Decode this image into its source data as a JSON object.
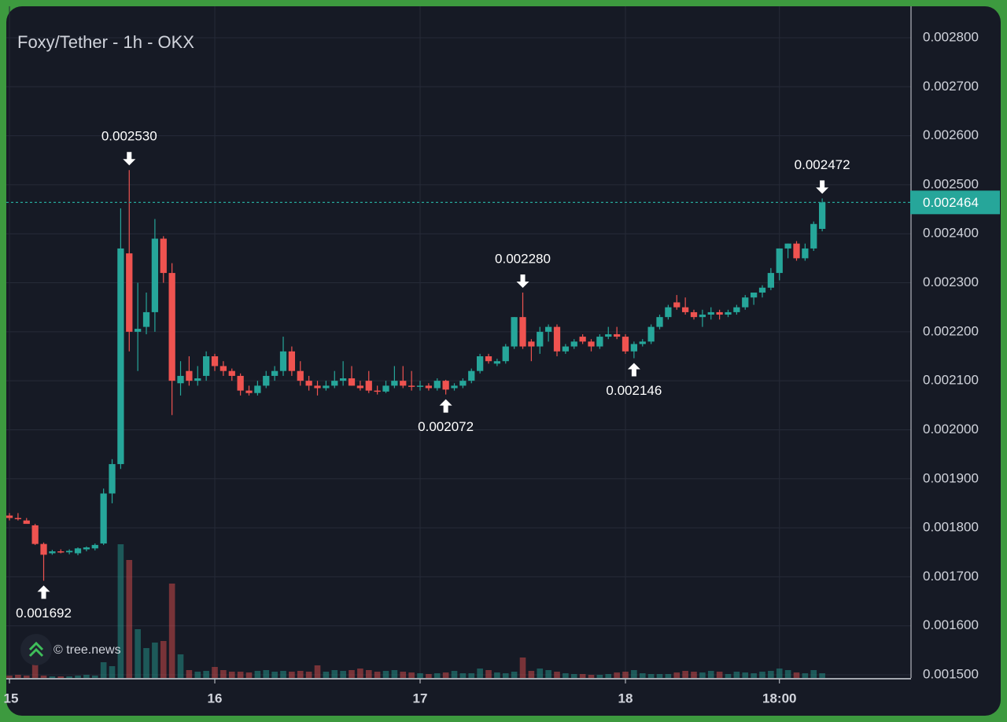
{
  "chart_data": {
    "type": "candlestick",
    "title": "Foxy/Tether - 1h - OKX",
    "watermark": "© tree.news",
    "up_color": "#26a69a",
    "down_color": "#ef5350",
    "grid": true,
    "ylim": [
      0.0015,
      0.0028
    ],
    "yticks": [
      {
        "value": 0.0015,
        "label": "0.001500"
      },
      {
        "value": 0.0016,
        "label": "0.001600"
      },
      {
        "value": 0.0017,
        "label": "0.001700"
      },
      {
        "value": 0.0018,
        "label": "0.001800"
      },
      {
        "value": 0.0019,
        "label": "0.001900"
      },
      {
        "value": 0.002,
        "label": "0.002000"
      },
      {
        "value": 0.0021,
        "label": "0.002100"
      },
      {
        "value": 0.0022,
        "label": "0.002200"
      },
      {
        "value": 0.0023,
        "label": "0.002300"
      },
      {
        "value": 0.0024,
        "label": "0.002400"
      },
      {
        "value": 0.0025,
        "label": "0.002500"
      },
      {
        "value": 0.0026,
        "label": "0.002600"
      },
      {
        "value": 0.0027,
        "label": "0.002700"
      },
      {
        "value": 0.0028,
        "label": "0.002800"
      }
    ],
    "xlim": [
      -0.37,
      105.38
    ],
    "xticks": [
      {
        "value": 0,
        "label": "15"
      },
      {
        "value": 24,
        "label": "16"
      },
      {
        "value": 48,
        "label": "17"
      },
      {
        "value": 72,
        "label": "18"
      },
      {
        "value": 90,
        "label": "18:00"
      }
    ],
    "last_price": {
      "value": 0.002464,
      "label": "0.002464"
    },
    "annotations": [
      {
        "x": 14,
        "value": 0.00253,
        "label": "0.002530",
        "side": "above"
      },
      {
        "x": 4,
        "value": 0.001692,
        "label": "0.001692",
        "side": "below"
      },
      {
        "x": 60,
        "value": 0.00228,
        "label": "0.002280",
        "side": "above"
      },
      {
        "x": 51,
        "value": 0.002072,
        "label": "0.002072",
        "side": "below"
      },
      {
        "x": 73,
        "value": 0.002146,
        "label": "0.002146",
        "side": "below"
      },
      {
        "x": 95,
        "value": 0.002472,
        "label": "0.002472",
        "side": "above"
      }
    ],
    "candles": [
      [
        0.001825,
        0.00183,
        0.001815,
        0.00182
      ],
      [
        0.00182,
        0.00183,
        0.001815,
        0.001818
      ],
      [
        0.001815,
        0.00182,
        0.00181,
        0.001808
      ],
      [
        0.001805,
        0.001808,
        0.001765,
        0.001767
      ],
      [
        0.001767,
        0.00177,
        0.001692,
        0.001745
      ],
      [
        0.001748,
        0.001755,
        0.001745,
        0.001752
      ],
      [
        0.001752,
        0.001756,
        0.001748,
        0.00175
      ],
      [
        0.00175,
        0.001756,
        0.001746,
        0.001753
      ],
      [
        0.001748,
        0.00176,
        0.001744,
        0.001758
      ],
      [
        0.001756,
        0.001762,
        0.001752,
        0.00176
      ],
      [
        0.001758,
        0.001768,
        0.001754,
        0.001765
      ],
      [
        0.001768,
        0.00188,
        0.001765,
        0.00187
      ],
      [
        0.00187,
        0.00194,
        0.00185,
        0.00193
      ],
      [
        0.00193,
        0.002452,
        0.00192,
        0.00237
      ],
      [
        0.00236,
        0.00253,
        0.00216,
        0.0022
      ],
      [
        0.0022,
        0.0023,
        0.00212,
        0.002206
      ],
      [
        0.00221,
        0.00228,
        0.002195,
        0.00224
      ],
      [
        0.00224,
        0.00243,
        0.0022,
        0.00239
      ],
      [
        0.00239,
        0.002395,
        0.0023,
        0.00232
      ],
      [
        0.00232,
        0.00234,
        0.00203,
        0.0021
      ],
      [
        0.002095,
        0.00214,
        0.00207,
        0.00211
      ],
      [
        0.00212,
        0.00215,
        0.00209,
        0.0021
      ],
      [
        0.0021,
        0.00213,
        0.00209,
        0.002105
      ],
      [
        0.00211,
        0.00216,
        0.0021,
        0.00215
      ],
      [
        0.00215,
        0.002155,
        0.00212,
        0.00213
      ],
      [
        0.00213,
        0.00214,
        0.00211,
        0.00212
      ],
      [
        0.00212,
        0.002125,
        0.0021,
        0.00211
      ],
      [
        0.00211,
        0.002115,
        0.00207,
        0.00208
      ],
      [
        0.00208,
        0.00209,
        0.00207,
        0.002075
      ],
      [
        0.002075,
        0.0021,
        0.00207,
        0.00209
      ],
      [
        0.00209,
        0.00212,
        0.002085,
        0.00211
      ],
      [
        0.00211,
        0.00213,
        0.0021,
        0.00212
      ],
      [
        0.00212,
        0.00219,
        0.00211,
        0.00216
      ],
      [
        0.00216,
        0.00217,
        0.00211,
        0.00212
      ],
      [
        0.00212,
        0.00214,
        0.00209,
        0.0021
      ],
      [
        0.0021,
        0.00211,
        0.00208,
        0.00209
      ],
      [
        0.00209,
        0.0021,
        0.00207,
        0.002085
      ],
      [
        0.002085,
        0.0021,
        0.00208,
        0.00209
      ],
      [
        0.00209,
        0.00212,
        0.002085,
        0.0021
      ],
      [
        0.0021,
        0.00214,
        0.00209,
        0.002105
      ],
      [
        0.002105,
        0.00213,
        0.00209,
        0.00209
      ],
      [
        0.00209,
        0.0021,
        0.00208,
        0.002085
      ],
      [
        0.0021,
        0.00212,
        0.002075,
        0.00208
      ],
      [
        0.00208,
        0.00209,
        0.002072,
        0.002078
      ],
      [
        0.002078,
        0.0021,
        0.002075,
        0.00209
      ],
      [
        0.00209,
        0.00213,
        0.002085,
        0.0021
      ],
      [
        0.0021,
        0.00213,
        0.002085,
        0.00209
      ],
      [
        0.00209,
        0.00212,
        0.00208,
        0.002088
      ],
      [
        0.002088,
        0.0021,
        0.00208,
        0.00209
      ],
      [
        0.00209,
        0.002095,
        0.00208,
        0.002085
      ],
      [
        0.002085,
        0.002105,
        0.00208,
        0.0021
      ],
      [
        0.0021,
        0.002102,
        0.002072,
        0.002082
      ],
      [
        0.002085,
        0.002095,
        0.00208,
        0.00209
      ],
      [
        0.00209,
        0.002105,
        0.002085,
        0.0021
      ],
      [
        0.0021,
        0.002125,
        0.002095,
        0.00212
      ],
      [
        0.00212,
        0.002155,
        0.002115,
        0.00215
      ],
      [
        0.00215,
        0.002155,
        0.002135,
        0.00214
      ],
      [
        0.002135,
        0.002145,
        0.00213,
        0.00214
      ],
      [
        0.00214,
        0.002175,
        0.002135,
        0.00217
      ],
      [
        0.00217,
        0.00223,
        0.002165,
        0.00223
      ],
      [
        0.00223,
        0.00228,
        0.002165,
        0.00217
      ],
      [
        0.00218,
        0.002185,
        0.00214,
        0.00217
      ],
      [
        0.00217,
        0.00221,
        0.002155,
        0.0022
      ],
      [
        0.0022,
        0.002215,
        0.00218,
        0.00221
      ],
      [
        0.00221,
        0.002215,
        0.00215,
        0.00216
      ],
      [
        0.00216,
        0.002175,
        0.002155,
        0.00217
      ],
      [
        0.00217,
        0.002185,
        0.002165,
        0.00218
      ],
      [
        0.00219,
        0.002195,
        0.002175,
        0.00218
      ],
      [
        0.00218,
        0.002185,
        0.00216,
        0.00217
      ],
      [
        0.00217,
        0.002195,
        0.002165,
        0.00219
      ],
      [
        0.00219,
        0.00221,
        0.002185,
        0.002195
      ],
      [
        0.002195,
        0.00221,
        0.002185,
        0.00219
      ],
      [
        0.00219,
        0.002195,
        0.002155,
        0.00216
      ],
      [
        0.00216,
        0.00218,
        0.002146,
        0.002175
      ],
      [
        0.002175,
        0.002185,
        0.00217,
        0.00218
      ],
      [
        0.00218,
        0.002215,
        0.002175,
        0.00221
      ],
      [
        0.00221,
        0.002235,
        0.002205,
        0.00223
      ],
      [
        0.00223,
        0.002255,
        0.002225,
        0.00225
      ],
      [
        0.00226,
        0.002275,
        0.002245,
        0.00225
      ],
      [
        0.00225,
        0.00227,
        0.002235,
        0.00224
      ],
      [
        0.00224,
        0.002245,
        0.002225,
        0.00223
      ],
      [
        0.00223,
        0.002245,
        0.00221,
        0.002235
      ],
      [
        0.002235,
        0.00225,
        0.002225,
        0.00224
      ],
      [
        0.00224,
        0.002245,
        0.002225,
        0.002235
      ],
      [
        0.002235,
        0.002245,
        0.00223,
        0.00224
      ],
      [
        0.00224,
        0.002255,
        0.002235,
        0.00225
      ],
      [
        0.00225,
        0.002275,
        0.002245,
        0.00227
      ],
      [
        0.00227,
        0.00228,
        0.002255,
        0.00228
      ],
      [
        0.00228,
        0.002295,
        0.00227,
        0.00229
      ],
      [
        0.00229,
        0.00233,
        0.002285,
        0.00232
      ],
      [
        0.00232,
        0.00237,
        0.002305,
        0.00237
      ],
      [
        0.00237,
        0.00238,
        0.00235,
        0.00238
      ],
      [
        0.00238,
        0.002385,
        0.002345,
        0.00235
      ],
      [
        0.00235,
        0.00238,
        0.002345,
        0.00237
      ],
      [
        0.00237,
        0.002425,
        0.002365,
        0.00242
      ],
      [
        0.00241,
        0.002472,
        0.002405,
        0.002464
      ]
    ],
    "volume": [
      3,
      4,
      3,
      22,
      3,
      2,
      2,
      2,
      3,
      4,
      3,
      20,
      15,
      170,
      150,
      62,
      38,
      45,
      47,
      120,
      30,
      10,
      8,
      9,
      14,
      10,
      8,
      8,
      7,
      9,
      10,
      8,
      9,
      8,
      9,
      8,
      16,
      8,
      10,
      9,
      10,
      12,
      10,
      8,
      9,
      10,
      8,
      7,
      6,
      5,
      6,
      7,
      9,
      6,
      6,
      12,
      10,
      7,
      6,
      8,
      26,
      9,
      12,
      10,
      8,
      6,
      5,
      5,
      4,
      4,
      5,
      7,
      8,
      10,
      6,
      5,
      5,
      5,
      7,
      9,
      8,
      7,
      9,
      8,
      5,
      8,
      7,
      6,
      8,
      9,
      12,
      10,
      7,
      6,
      10,
      6
    ]
  }
}
